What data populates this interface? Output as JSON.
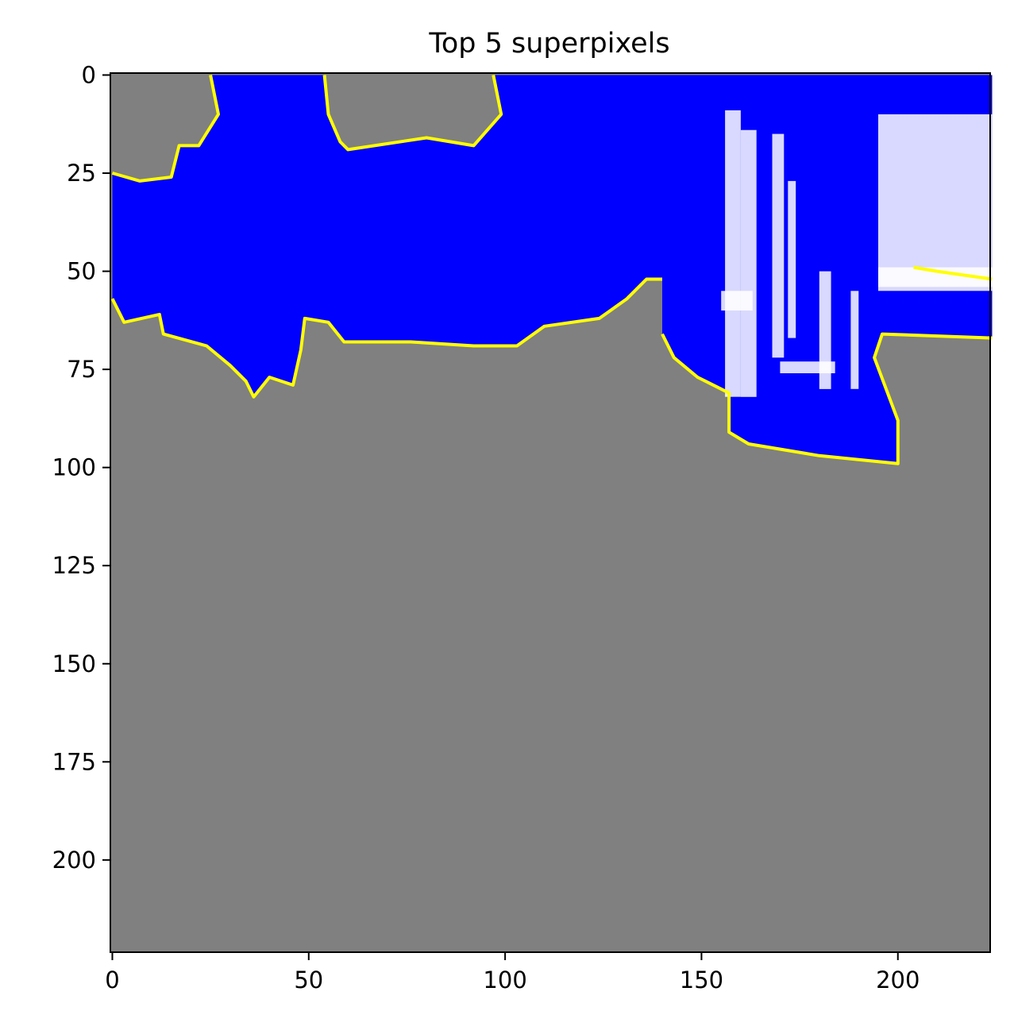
{
  "chart_data": {
    "type": "heatmap",
    "title": "Top 5 superpixels",
    "xlabel": "",
    "ylabel": "",
    "xlim": [
      -0.5,
      223.5
    ],
    "ylim": [
      223.5,
      -0.5
    ],
    "xticks": [
      0,
      50,
      100,
      150,
      200
    ],
    "yticks": [
      0,
      25,
      50,
      75,
      100,
      125,
      150,
      175,
      200
    ],
    "xtick_labels": [
      "0",
      "50",
      "100",
      "150",
      "200"
    ],
    "ytick_labels": [
      "0",
      "25",
      "50",
      "75",
      "100",
      "125",
      "150",
      "175",
      "200"
    ],
    "grid": false,
    "image_size": [
      224,
      224
    ],
    "colors": {
      "masked": "#808080",
      "superpixel": "#0000ff",
      "boundary": "#ffff00",
      "highlight": "#ffffff"
    },
    "superpixel_regions": [
      {
        "polygon": [
          [
            0,
            0
          ],
          [
            25,
            0
          ],
          [
            27,
            10
          ],
          [
            22,
            18
          ],
          [
            17,
            18
          ],
          [
            15,
            26
          ],
          [
            7,
            27
          ],
          [
            0,
            25
          ],
          [
            0,
            57
          ],
          [
            3,
            63
          ],
          [
            12,
            61
          ],
          [
            13,
            66
          ],
          [
            24,
            69
          ],
          [
            30,
            74
          ],
          [
            34,
            78
          ],
          [
            36,
            82
          ],
          [
            40,
            77
          ],
          [
            46,
            79
          ],
          [
            48,
            70
          ],
          [
            49,
            62
          ],
          [
            55,
            63
          ],
          [
            59,
            68
          ],
          [
            76,
            68
          ],
          [
            92,
            69
          ],
          [
            103,
            69
          ],
          [
            110,
            64
          ],
          [
            124,
            62
          ],
          [
            131,
            57
          ],
          [
            136,
            52
          ],
          [
            140,
            52
          ],
          [
            140,
            0
          ],
          [
            97,
            0
          ],
          [
            99,
            10
          ],
          [
            92,
            18
          ],
          [
            80,
            16
          ],
          [
            60,
            19
          ],
          [
            58,
            17
          ],
          [
            55,
            10
          ],
          [
            54,
            0
          ]
        ]
      },
      {
        "polygon": [
          [
            140,
            0
          ],
          [
            224,
            0
          ],
          [
            224,
            67
          ],
          [
            196,
            66
          ],
          [
            194,
            72
          ],
          [
            200,
            88
          ],
          [
            200,
            99
          ],
          [
            180,
            97
          ],
          [
            162,
            94
          ],
          [
            157,
            91
          ],
          [
            157,
            81
          ],
          [
            149,
            77
          ],
          [
            143,
            72
          ],
          [
            140,
            66
          ]
        ]
      }
    ],
    "boundary_lines": [
      [
        [
          25,
          0
        ],
        [
          27,
          10
        ],
        [
          22,
          18
        ],
        [
          17,
          18
        ],
        [
          15,
          26
        ],
        [
          7,
          27
        ],
        [
          0,
          25
        ]
      ],
      [
        [
          0,
          57
        ],
        [
          3,
          63
        ],
        [
          12,
          61
        ],
        [
          13,
          66
        ],
        [
          24,
          69
        ],
        [
          30,
          74
        ],
        [
          34,
          78
        ],
        [
          36,
          82
        ],
        [
          40,
          77
        ],
        [
          46,
          79
        ],
        [
          48,
          70
        ],
        [
          49,
          62
        ],
        [
          55,
          63
        ],
        [
          59,
          68
        ],
        [
          76,
          68
        ],
        [
          92,
          69
        ],
        [
          103,
          69
        ],
        [
          110,
          64
        ],
        [
          124,
          62
        ],
        [
          131,
          57
        ],
        [
          136,
          52
        ],
        [
          140,
          52
        ]
      ],
      [
        [
          54,
          0
        ],
        [
          55,
          10
        ],
        [
          58,
          17
        ],
        [
          60,
          19
        ],
        [
          80,
          16
        ],
        [
          92,
          18
        ],
        [
          99,
          10
        ],
        [
          97,
          0
        ]
      ],
      [
        [
          224,
          67
        ],
        [
          196,
          66
        ],
        [
          194,
          72
        ],
        [
          200,
          88
        ],
        [
          200,
          99
        ],
        [
          180,
          97
        ],
        [
          162,
          94
        ],
        [
          157,
          91
        ],
        [
          157,
          81
        ],
        [
          149,
          77
        ],
        [
          143,
          72
        ],
        [
          140,
          66
        ]
      ],
      [
        [
          204,
          49
        ],
        [
          210,
          50
        ],
        [
          224,
          52
        ]
      ]
    ],
    "highlight_rects": [
      [
        195,
        10,
        29,
        45
      ],
      [
        156,
        9,
        4,
        73
      ],
      [
        160,
        14,
        4,
        68
      ],
      [
        168,
        15,
        3,
        57
      ],
      [
        172,
        27,
        2,
        40
      ],
      [
        180,
        50,
        3,
        30
      ],
      [
        188,
        55,
        2,
        25
      ],
      [
        195,
        49,
        29,
        5
      ],
      [
        170,
        73,
        14,
        3
      ],
      [
        155,
        55,
        8,
        5
      ]
    ]
  }
}
